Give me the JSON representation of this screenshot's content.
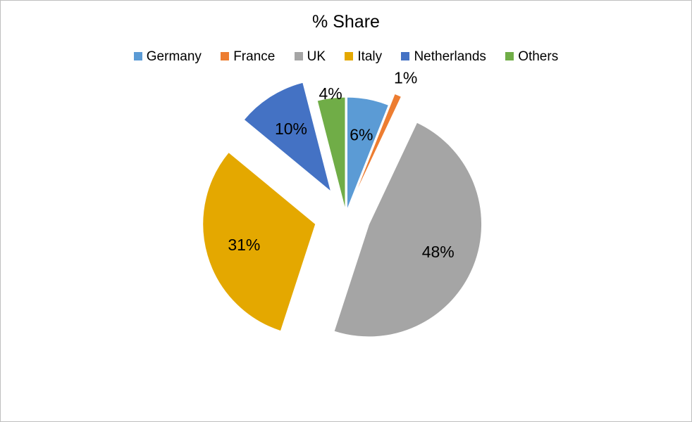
{
  "chart_data": {
    "type": "pie",
    "title": "% Share",
    "legend_position": "top",
    "exploded": true,
    "slices": [
      {
        "label": "Germany",
        "value": 6,
        "display": "6%",
        "color": "#5B9BD5"
      },
      {
        "label": "France",
        "value": 1,
        "display": "1%",
        "color": "#ED7D31"
      },
      {
        "label": "UK",
        "value": 48,
        "display": "48%",
        "color": "#A5A5A5"
      },
      {
        "label": "Italy",
        "value": 31,
        "display": "31%",
        "color": "#E4A800"
      },
      {
        "label": "Netherlands",
        "value": 10,
        "display": "10%",
        "color": "#4472C4"
      },
      {
        "label": "Others",
        "value": 4,
        "display": "4%",
        "color": "#70AD47"
      }
    ]
  }
}
